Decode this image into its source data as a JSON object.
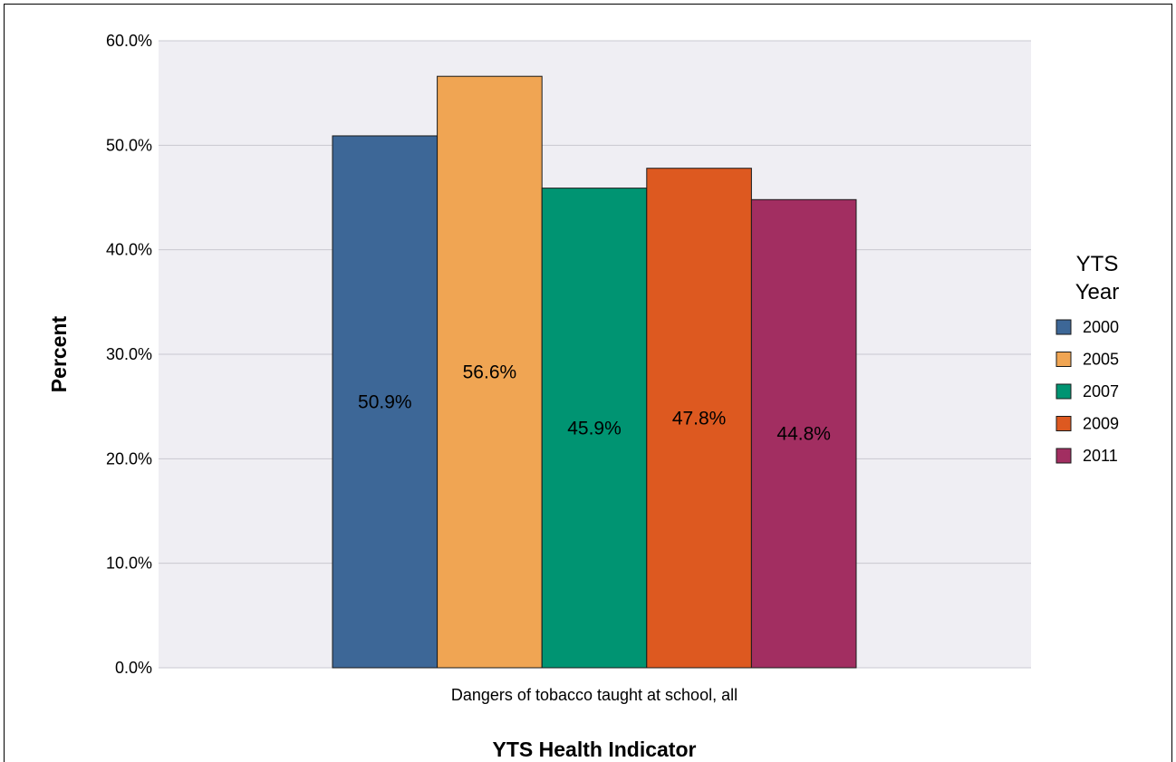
{
  "chart_data": {
    "type": "bar",
    "categories": [
      "Dangers of tobacco taught at school, all"
    ],
    "series": [
      {
        "name": "2000",
        "values": [
          50.9
        ],
        "color": "#3d6797",
        "label": "50.9%"
      },
      {
        "name": "2005",
        "values": [
          56.6
        ],
        "color": "#f0a553",
        "label": "56.6%"
      },
      {
        "name": "2007",
        "values": [
          45.9
        ],
        "color": "#009472",
        "label": "45.9%"
      },
      {
        "name": "2009",
        "values": [
          47.8
        ],
        "color": "#dd5920",
        "label": "47.8%"
      },
      {
        "name": "2011",
        "values": [
          44.8
        ],
        "color": "#a22e61",
        "label": "44.8%"
      }
    ],
    "xlabel": "YTS Health Indicator",
    "ylabel": "Percent",
    "ylim": [
      0,
      60
    ],
    "yticks": [
      "0.0%",
      "10.0%",
      "20.0%",
      "30.0%",
      "40.0%",
      "50.0%",
      "60.0%"
    ],
    "legend": {
      "title_line1": "YTS",
      "title_line2": "Year",
      "placement": "right"
    },
    "grid": true,
    "colors": {
      "plot_background": "#efeef3",
      "gridline": "#c9c8d0",
      "bar_border": "#1a1a1a"
    }
  }
}
